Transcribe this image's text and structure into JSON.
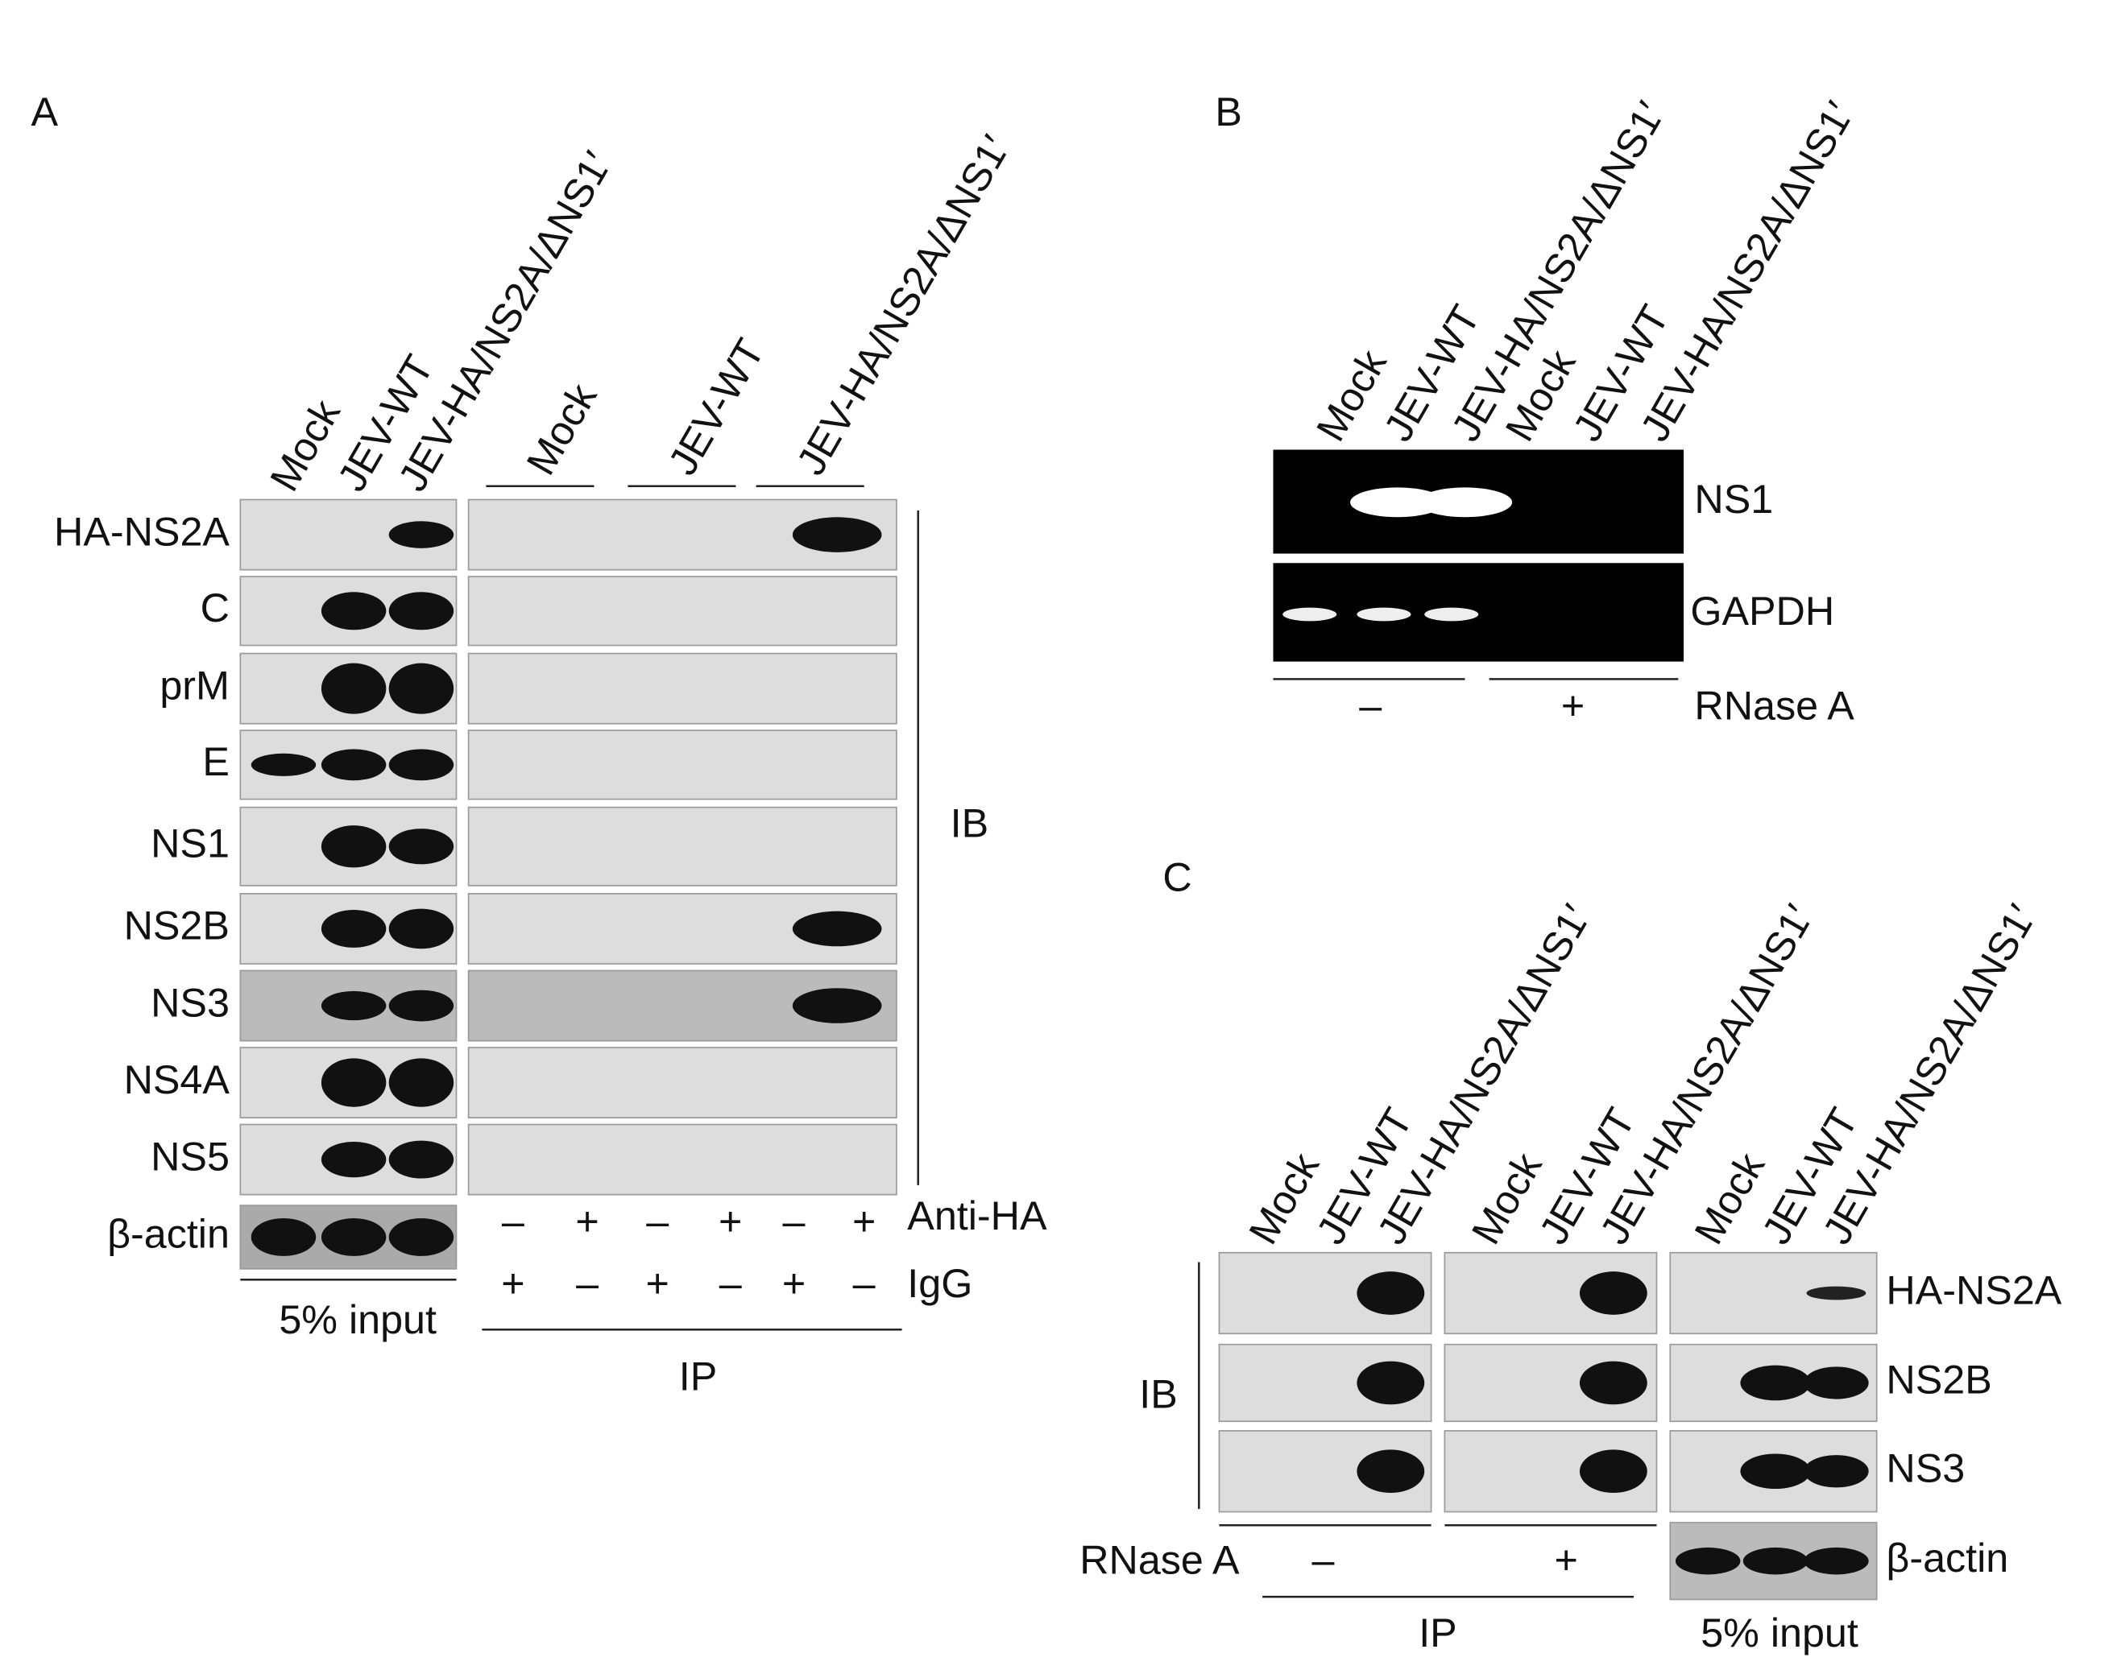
{
  "panel_a": {
    "label": "A",
    "lanes": [
      "Mock",
      "JEV-WT",
      "JEV-HA/NS2A/ΔNS1′"
    ],
    "ip_groups": [
      "Mock",
      "JEV-WT",
      "JEV-HA/NS2A/ΔNS1′"
    ],
    "blots": [
      "HA-NS2A",
      "C",
      "prM",
      "E",
      "NS1",
      "NS2B",
      "NS3",
      "NS4A",
      "NS5",
      "β-actin"
    ],
    "ib": "IB",
    "anti_ha": {
      "label": "Anti-HA",
      "signs": [
        "–",
        "+",
        "–",
        "+",
        "–",
        "+"
      ]
    },
    "igg": {
      "label": "IgG",
      "signs": [
        "+",
        "–",
        "+",
        "–",
        "+",
        "–"
      ]
    },
    "input": "5% input",
    "ip": "IP"
  },
  "panel_b": {
    "label": "B",
    "lanes": [
      "Mock",
      "JEV-WT",
      "JEV-HA/NS2A/ΔNS1′",
      "Mock",
      "JEV-WT",
      "JEV-HA/NS2A/ΔNS1′"
    ],
    "bands": [
      "NS1",
      "GAPDH"
    ],
    "rnase": {
      "label": "RNase A",
      "signs": [
        "–",
        "+"
      ]
    }
  },
  "panel_c": {
    "label": "C",
    "lanes": [
      "Mock",
      "JEV-WT",
      "JEV-HA/NS2A/ΔNS1′",
      "Mock",
      "JEV-WT",
      "JEV-HA/NS2A/ΔNS1′",
      "Mock",
      "JEV-WT",
      "JEV-HA/NS2A/ΔNS1′"
    ],
    "blots": [
      "HA-NS2A",
      "NS2B",
      "NS3",
      "β-actin"
    ],
    "ib": "IB",
    "rnase": {
      "label": "RNase A",
      "signs": [
        "–",
        "+"
      ]
    },
    "ip": "IP",
    "input": "5% input"
  }
}
